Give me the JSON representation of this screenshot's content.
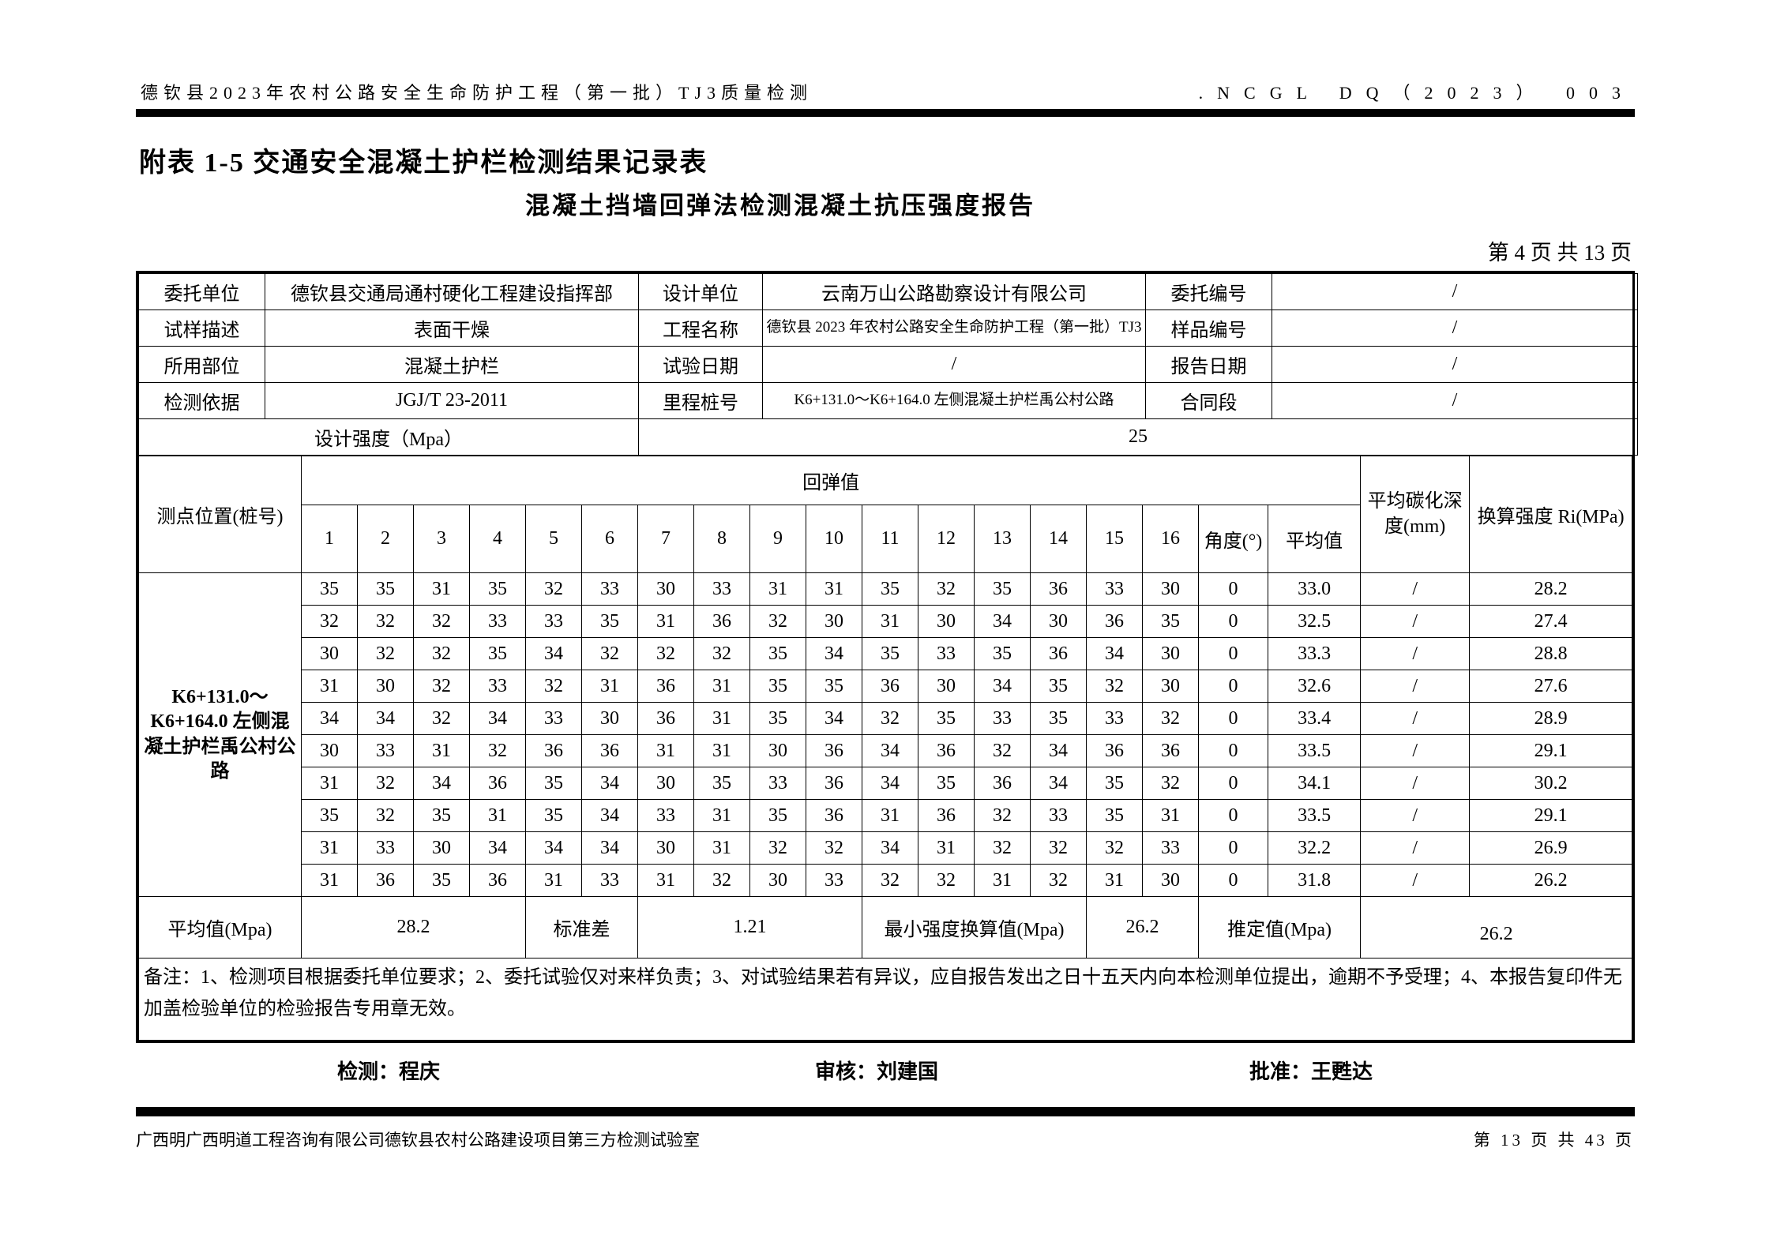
{
  "header": {
    "left": "德钦县2023年农村公路安全生命防护工程（第一批）TJ3质量检测",
    "right": ".NCGL DQ（2023） 003"
  },
  "titles": {
    "attachment": "附表 1-5 交通安全混凝土护栏检测结果记录表",
    "report": "混凝土挡墙回弹法检测混凝土抗压强度报告",
    "page_info": "第 4 页 共 13 页"
  },
  "info_table": {
    "rows": [
      [
        "委托单位",
        "德钦县交通局通村硬化工程建设指挥部",
        "设计单位",
        "云南万山公路勘察设计有限公司",
        "委托编号",
        "/"
      ],
      [
        "试样描述",
        "表面干燥",
        "工程名称",
        "德钦县 2023 年农村公路安全生命防护工程（第一批）TJ3",
        "样品编号",
        "/"
      ],
      [
        "所用部位",
        "混凝土护栏",
        "试验日期",
        "/",
        "报告日期",
        "/"
      ],
      [
        "检测依据",
        "JGJ/T 23-2011",
        "里程桩号",
        "K6+131.0～K6+164.0 左侧混凝土护栏禹公村公路",
        "合同段",
        "/"
      ]
    ],
    "design_strength_label": "设计强度（Mpa）",
    "design_strength_value": "25"
  },
  "data_table": {
    "location_header": "测点位置(桩号)",
    "rebound_header": "回弹值",
    "col_numbers": [
      "1",
      "2",
      "3",
      "4",
      "5",
      "6",
      "7",
      "8",
      "9",
      "10",
      "11",
      "12",
      "13",
      "14",
      "15",
      "16"
    ],
    "angle_header": "角度(°)",
    "average_header": "平均值",
    "carbonation_header": "平均碳化深度(mm)",
    "strength_header": "换算强度 Ri(MPa)",
    "location_value": "K6+131.0～K6+164.0 左侧混凝土护栏禹公村公路",
    "rows": [
      {
        "values": [
          35,
          35,
          31,
          35,
          32,
          33,
          30,
          33,
          31,
          31,
          35,
          32,
          35,
          36,
          33,
          30
        ],
        "angle": "0",
        "average": "33.0",
        "carbonation": "/",
        "strength": "28.2"
      },
      {
        "values": [
          32,
          32,
          32,
          33,
          33,
          35,
          31,
          36,
          32,
          30,
          31,
          30,
          34,
          30,
          36,
          35
        ],
        "angle": "0",
        "average": "32.5",
        "carbonation": "/",
        "strength": "27.4"
      },
      {
        "values": [
          30,
          32,
          32,
          35,
          34,
          32,
          32,
          32,
          35,
          34,
          35,
          33,
          35,
          36,
          34,
          30
        ],
        "angle": "0",
        "average": "33.3",
        "carbonation": "/",
        "strength": "28.8"
      },
      {
        "values": [
          31,
          30,
          32,
          33,
          32,
          31,
          36,
          31,
          35,
          35,
          36,
          30,
          34,
          35,
          32,
          30
        ],
        "angle": "0",
        "average": "32.6",
        "carbonation": "/",
        "strength": "27.6"
      },
      {
        "values": [
          34,
          34,
          32,
          34,
          33,
          30,
          36,
          31,
          35,
          34,
          32,
          35,
          33,
          35,
          33,
          32
        ],
        "angle": "0",
        "average": "33.4",
        "carbonation": "/",
        "strength": "28.9"
      },
      {
        "values": [
          30,
          33,
          31,
          32,
          36,
          36,
          31,
          31,
          30,
          36,
          34,
          36,
          32,
          34,
          36,
          36
        ],
        "angle": "0",
        "average": "33.5",
        "carbonation": "/",
        "strength": "29.1"
      },
      {
        "values": [
          31,
          32,
          34,
          36,
          35,
          34,
          30,
          35,
          33,
          36,
          34,
          35,
          36,
          34,
          35,
          32
        ],
        "angle": "0",
        "average": "34.1",
        "carbonation": "/",
        "strength": "30.2"
      },
      {
        "values": [
          35,
          32,
          35,
          31,
          35,
          34,
          33,
          31,
          35,
          36,
          31,
          36,
          32,
          33,
          35,
          31
        ],
        "angle": "0",
        "average": "33.5",
        "carbonation": "/",
        "strength": "29.1"
      },
      {
        "values": [
          31,
          33,
          30,
          34,
          34,
          34,
          30,
          31,
          32,
          32,
          34,
          31,
          32,
          32,
          32,
          33
        ],
        "angle": "0",
        "average": "32.2",
        "carbonation": "/",
        "strength": "26.9"
      },
      {
        "values": [
          31,
          36,
          35,
          36,
          31,
          33,
          31,
          32,
          30,
          33,
          32,
          32,
          31,
          32,
          31,
          30
        ],
        "angle": "0",
        "average": "31.8",
        "carbonation": "/",
        "strength": "26.2"
      }
    ]
  },
  "summary_row": {
    "cells": [
      "平均值(Mpa)",
      "28.2",
      "标准差",
      "1.21",
      "最小强度换算值(Mpa)",
      "26.2",
      "推定值(Mpa)",
      "26.2"
    ]
  },
  "notes": "备注：1、检测项目根据委托单位要求；2、委托试验仅对来样负责；3、对试验结果若有异议，应自报告发出之日十五天内向本检测单位提出，逾期不予受理；4、本报告复印件无加盖检验单位的检验报告专用章无效。",
  "signatures": {
    "tester": "检测：程庆",
    "reviewer": "审核：刘建国",
    "approver": "批准：王甦达"
  },
  "footer": {
    "left": "广西明广西明道工程咨询有限公司德钦县农村公路建设项目第三方检测试验室",
    "right": "第 13 页 共 43 页"
  }
}
